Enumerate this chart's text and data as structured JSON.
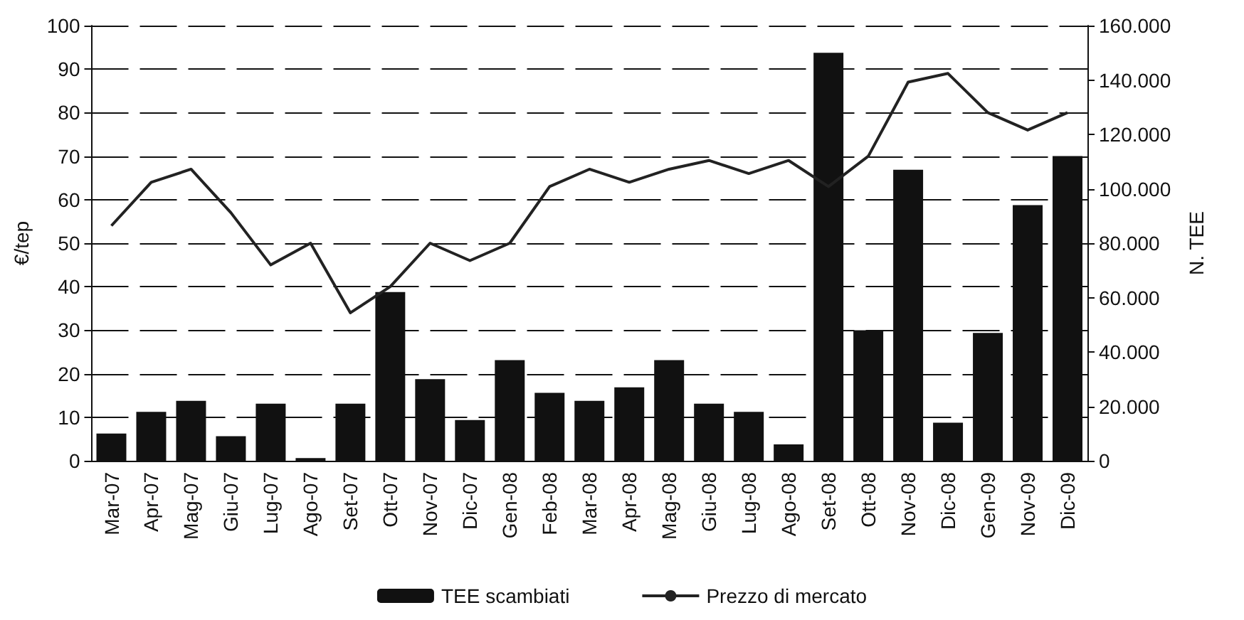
{
  "chart_data": {
    "type": "bar",
    "ylabel": "€/tep",
    "y2label": "N. TEE",
    "categories": [
      "Mar-07",
      "Apr-07",
      "Mag-07",
      "Giu-07",
      "Lug-07",
      "Ago-07",
      "Set-07",
      "Ott-07",
      "Nov-07",
      "Dic-07",
      "Gen-08",
      "Feb-08",
      "Mar-08",
      "Apr-08",
      "Mag-08",
      "Giu-08",
      "Lug-08",
      "Ago-08",
      "Set-08",
      "Ott-08",
      "Nov-08",
      "Dic-08",
      "Gen-09",
      "Nov-09",
      "Dic-09"
    ],
    "series": [
      {
        "name": "TEE scambiati",
        "axis": "y2",
        "color": "#111111",
        "values": [
          10000,
          18000,
          22000,
          9000,
          21000,
          1000,
          21000,
          62000,
          30000,
          15000,
          37000,
          25000,
          22000,
          27000,
          37000,
          21000,
          18000,
          6000,
          150000,
          48000,
          107000,
          14000,
          47000,
          94000,
          112000
        ]
      },
      {
        "name": "Prezzo di mercato",
        "type": "line",
        "color": "#222222",
        "values": [
          54,
          64,
          67,
          57,
          45,
          50,
          34,
          40,
          50,
          46,
          50,
          63,
          67,
          64,
          67,
          69,
          66,
          69,
          63,
          70,
          87,
          89,
          80,
          76,
          80
        ]
      }
    ],
    "ylim": [
      0,
      100
    ],
    "yticks": [
      0,
      10,
      20,
      30,
      40,
      50,
      60,
      70,
      80,
      90,
      100
    ],
    "y2lim": [
      0,
      160000
    ],
    "y2ticks": [
      {
        "value": 0,
        "label": "0"
      },
      {
        "value": 20000,
        "label": "20.000"
      },
      {
        "value": 40000,
        "label": "40.000"
      },
      {
        "value": 60000,
        "label": "60.000"
      },
      {
        "value": 80000,
        "label": "80.000"
      },
      {
        "value": 100000,
        "label": "100.000"
      },
      {
        "value": 120000,
        "label": "120.000"
      },
      {
        "value": 140000,
        "label": "140.000"
      },
      {
        "value": 160000,
        "label": "160.000"
      }
    ],
    "grid": "y",
    "legend": "bottom",
    "marker": "none",
    "line_style": "solid"
  }
}
